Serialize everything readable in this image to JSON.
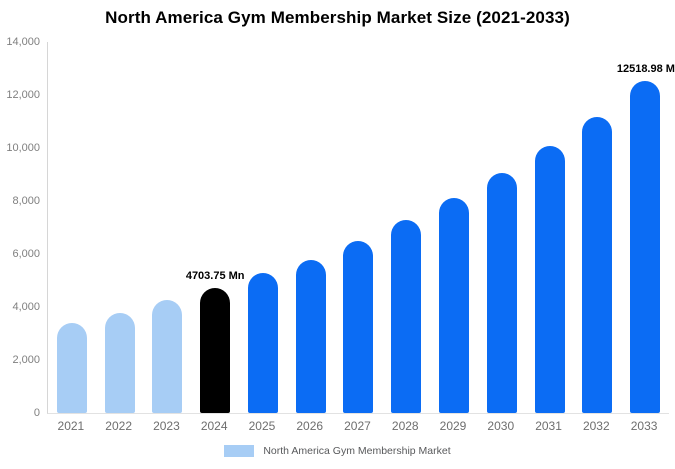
{
  "chart_data": {
    "type": "bar",
    "title": "North America Gym Membership Market Size (2021-2033)",
    "xlabel": "",
    "ylabel": "",
    "categories": [
      "2021",
      "2022",
      "2023",
      "2024",
      "2025",
      "2026",
      "2027",
      "2028",
      "2029",
      "2030",
      "2031",
      "2032",
      "2033"
    ],
    "series": [
      {
        "name": "North America Gym Membership Market",
        "values": [
          3380,
          3770,
          4260,
          4703.75,
          5280,
          5770,
          6490,
          7280,
          8110,
          9050,
          10070,
          11160,
          12518.98
        ]
      }
    ],
    "bar_colors": [
      "#a7cdf5",
      "#a7cdf5",
      "#a7cdf5",
      "#000000",
      "#0b6cf4",
      "#0b6cf4",
      "#0b6cf4",
      "#0b6cf4",
      "#0b6cf4",
      "#0b6cf4",
      "#0b6cf4",
      "#0b6cf4",
      "#0b6cf4"
    ],
    "ylim": [
      0,
      14000
    ],
    "yticks": [
      0,
      2000,
      4000,
      6000,
      8000,
      10000,
      12000,
      14000
    ],
    "ytick_labels": [
      "0",
      "2,000",
      "4,000",
      "6,000",
      "8,000",
      "10,000",
      "12,000",
      "14,000"
    ],
    "grid": false,
    "annotations": [
      {
        "category": "2024",
        "text": "4703.75 Mn",
        "align": "center"
      },
      {
        "category": "2033",
        "text": "12518.98 M",
        "align": "right"
      }
    ],
    "legend": {
      "position": "bottom",
      "label": "North America Gym Membership Market",
      "swatch_color": "#a7cdf5"
    }
  },
  "colors": {
    "light_blue": "#a7cdf5",
    "accent_blue": "#0b6cf4",
    "highlight_black": "#000000",
    "axis_line": "#d6d6d6",
    "baseline": "#e2e2e2",
    "tick_text": "#7f7f7f"
  }
}
